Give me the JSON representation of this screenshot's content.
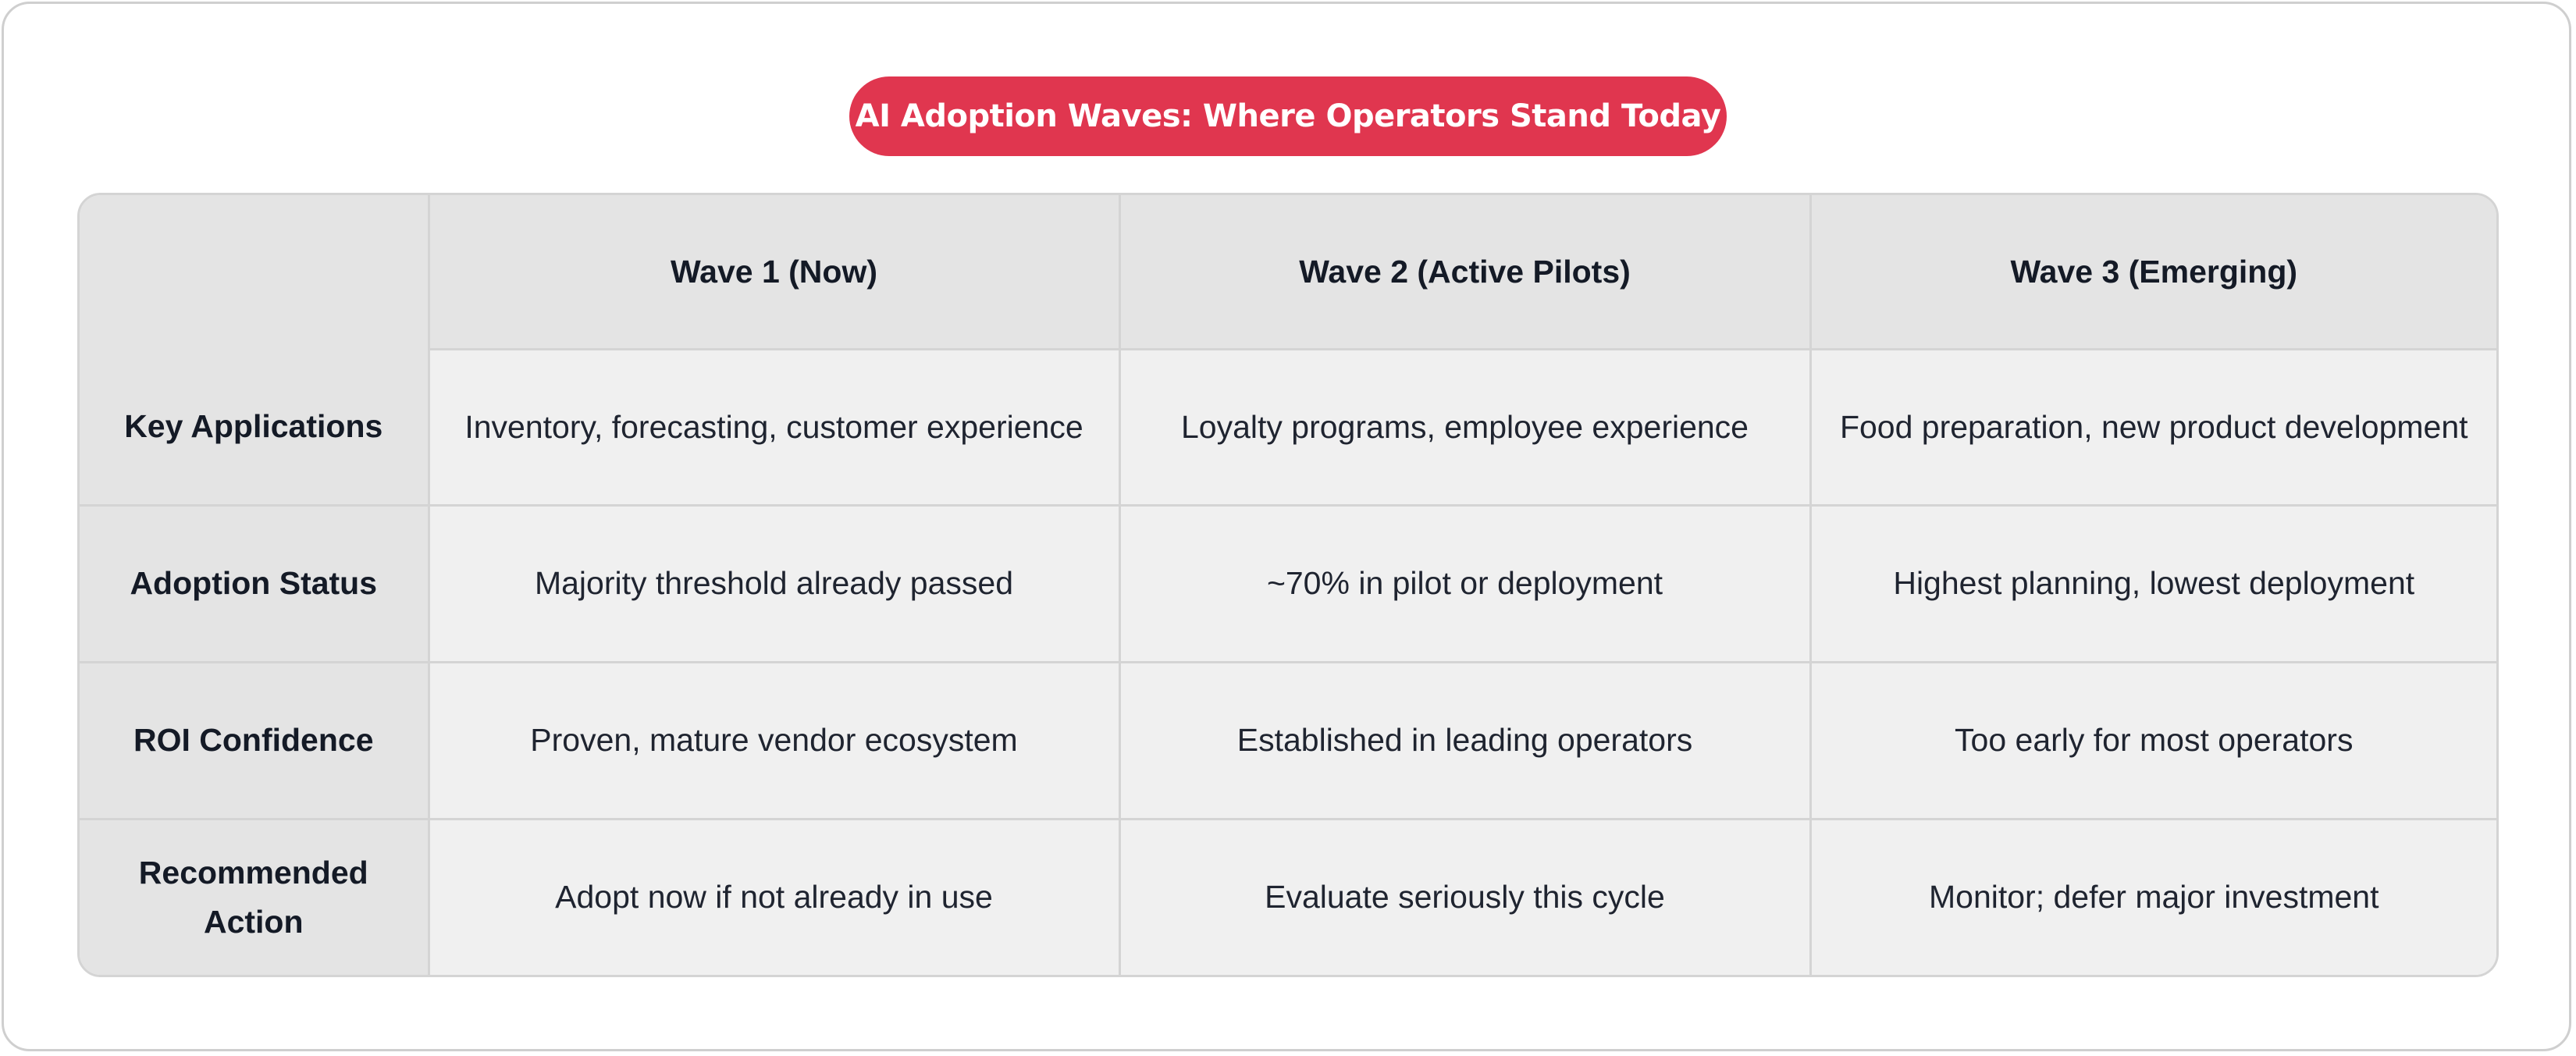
{
  "title": "AI Adoption Waves: Where Operators Stand Today",
  "colors": {
    "title_pill": "#e0364f",
    "header_bg": "#e4e4e4",
    "cell_bg": "#f0f0f0",
    "border": "#d4d4d4"
  },
  "table": {
    "corner": "",
    "columns": [
      "Wave 1 (Now)",
      "Wave 2 (Active Pilots)",
      "Wave 3 (Emerging)"
    ],
    "rows": [
      {
        "label": "Key Applications",
        "cells": [
          "Inventory, forecasting, customer experience",
          "Loyalty programs, employee experience",
          "Food preparation, new product development"
        ]
      },
      {
        "label": "Adoption Status",
        "cells": [
          "Majority threshold already passed",
          "~70% in pilot or deployment",
          "Highest planning, lowest deployment"
        ]
      },
      {
        "label": "ROI Confidence",
        "cells": [
          "Proven, mature vendor ecosystem",
          "Established in leading operators",
          "Too early for most operators"
        ]
      },
      {
        "label": "Recommended Action",
        "cells": [
          "Adopt now if not already in use",
          "Evaluate seriously this cycle",
          "Monitor; defer major investment"
        ]
      }
    ]
  }
}
